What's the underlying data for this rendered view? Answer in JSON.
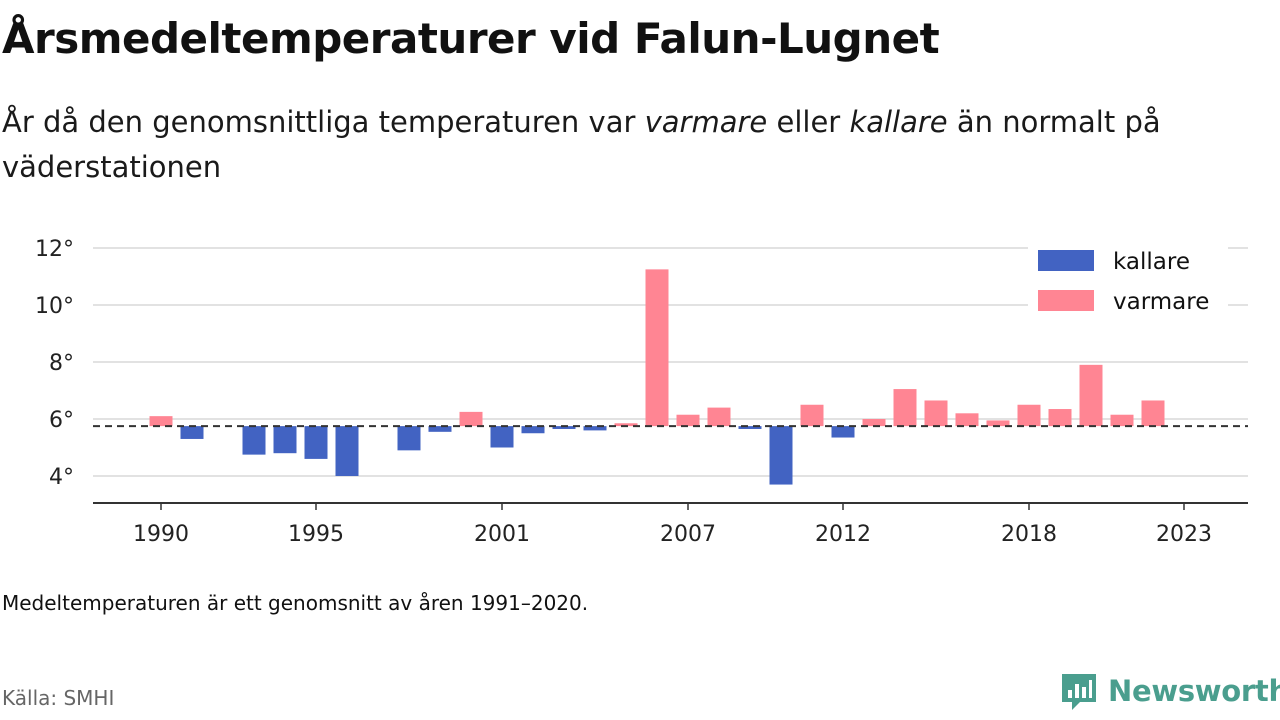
{
  "title": "Årsmedeltemperaturer vid Falun-Lugnet",
  "subtitle": {
    "part1": "År då den genomsnittliga temperaturen var ",
    "word_warmer": "varmare",
    "part2": " eller ",
    "word_colder": "kallare",
    "part3": " än normalt på väderstationen"
  },
  "footnote": "Medeltemperaturen är ett genomsnitt av åren 1991–2020.",
  "source": "Källa: SMHI",
  "brand": "Newsworthy",
  "colors": {
    "colder": "#4263c2",
    "warmer": "#ff8593",
    "brand": "#4a9e8e"
  },
  "chart_data": {
    "type": "bar",
    "x_tick_labels": [
      "1990",
      "1995",
      "2001",
      "2007",
      "2012",
      "2018",
      "2023"
    ],
    "y_tick_labels": [
      "4°",
      "6°",
      "8°",
      "10°",
      "12°"
    ],
    "ylim": [
      3,
      12.5
    ],
    "baseline": 5.75,
    "legend": [
      {
        "label": "kallare",
        "color_key": "colder"
      },
      {
        "label": "varmare",
        "color_key": "warmer"
      }
    ],
    "legend_position": "top-right",
    "grid": true,
    "years": [
      1990,
      1991,
      1993,
      1994,
      1995,
      1996,
      1998,
      1999,
      2000,
      2001,
      2002,
      2003,
      2004,
      2005,
      2006,
      2007,
      2008,
      2009,
      2010,
      2011,
      2012,
      2013,
      2014,
      2015,
      2016,
      2017,
      2018,
      2019,
      2020,
      2021,
      2022
    ],
    "values": [
      6.1,
      5.3,
      4.75,
      4.8,
      4.6,
      4.0,
      4.9,
      5.55,
      6.25,
      5.0,
      5.5,
      5.65,
      5.6,
      5.85,
      11.25,
      6.15,
      6.4,
      5.65,
      3.7,
      6.5,
      5.35,
      6.0,
      7.05,
      6.65,
      6.2,
      5.95,
      6.5,
      6.35,
      7.9,
      6.15,
      6.65
    ]
  }
}
